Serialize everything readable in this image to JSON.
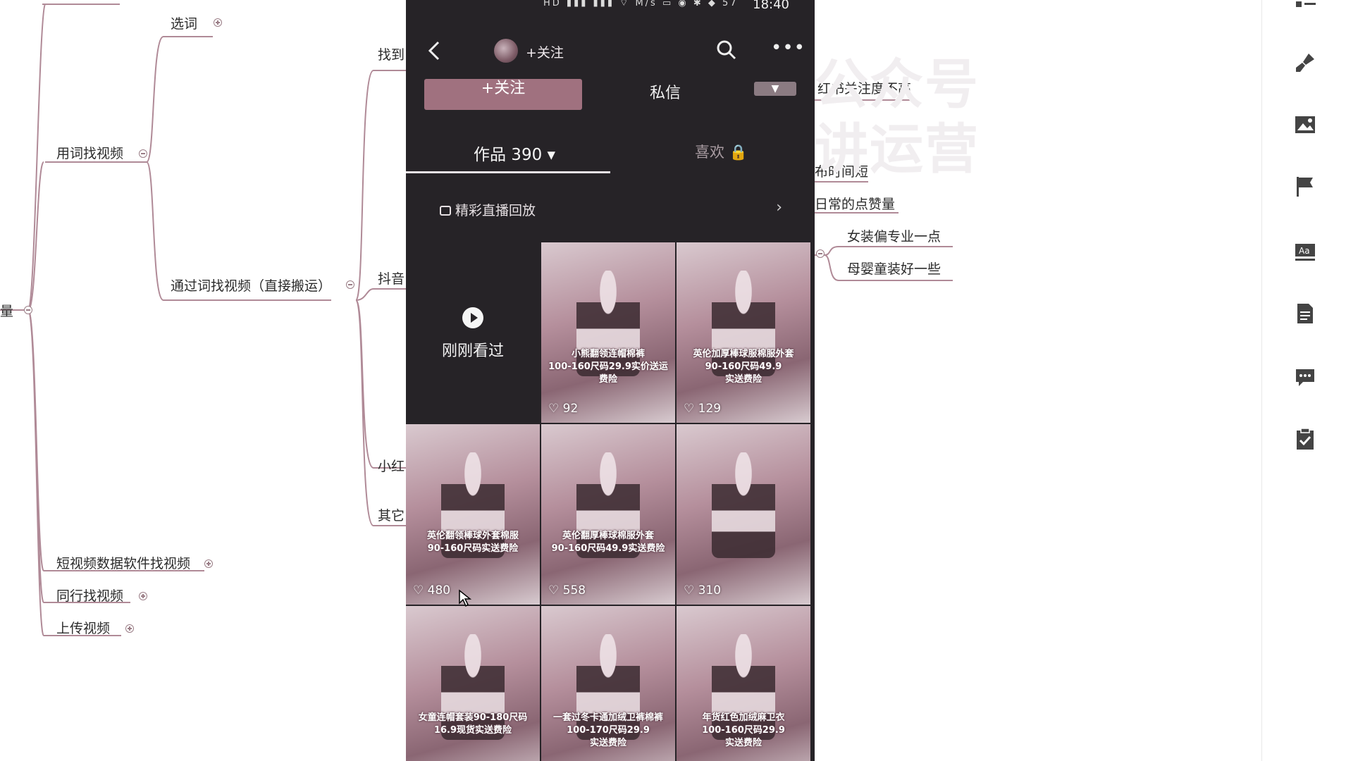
{
  "mindmap": {
    "nodes": {
      "root_partial": "量",
      "select_words": "选词",
      "find_by_words": "用词找视频",
      "find_via_words": "通过词找视频（直接搬运）",
      "short_video_software": "短视频数据软件找视频",
      "peer_videos": "同行找视频",
      "upload_videos": "上传视频",
      "find_partial": "找到",
      "douyin_partial": "抖音",
      "xiaohongshu_partial": "小红",
      "other_partial": "其它",
      "xhs_attention": "红书关注度不高",
      "short_time": "布时间短",
      "daily_likes": "日常的点赞量",
      "womens_clothing": "女装偏专业一点",
      "baby_clothing": "母婴童装好一些"
    },
    "watermark": {
      "line1": "公众号",
      "line2": "讲运营"
    }
  },
  "phone": {
    "status": {
      "time": "18:40",
      "icons": "HD ▮▮▮ ▮▮▮ ⌔ M/s ▭ ◉ ✱ ◆ 57"
    },
    "topbar": {
      "follow_label": "+关注"
    },
    "actions": {
      "follow_button": "+关注",
      "message_button": "私信",
      "dropdown_glyph": "▼"
    },
    "tabs": {
      "works": "作品 390 ▾",
      "likes": "喜欢 🔒"
    },
    "live_replay": {
      "label": "精彩直播回放",
      "arrow": "›"
    },
    "recent": {
      "label": "刚刚看过"
    },
    "videos": [
      {
        "caption": "小熊翻领连帽棉裤\n100-160尺码29.9实价送运费险",
        "likes": "92"
      },
      {
        "caption": "英伦加厚棒球服棉服外套\n90-160尺码49.9\n实送费险",
        "likes": "129"
      },
      {
        "caption": "英伦翻领棒球外套棉服\n90-160尺码实送费险",
        "likes": "480"
      },
      {
        "caption": "英伦翻厚棒球棉服外套\n90-160尺码49.9实送费险",
        "likes": "558"
      },
      {
        "caption": "",
        "likes": "310"
      },
      {
        "caption": "女童连帽套装90-180尺码\n16.9现货实送费险",
        "likes": ""
      },
      {
        "caption": "一套过冬卡通加绒卫裤棉裤\n100-170尺码29.9\n实送费险",
        "likes": ""
      },
      {
        "caption": "年货红色加绒麻卫衣\n100-160尺码29.9\n实送费险",
        "likes": ""
      }
    ]
  }
}
